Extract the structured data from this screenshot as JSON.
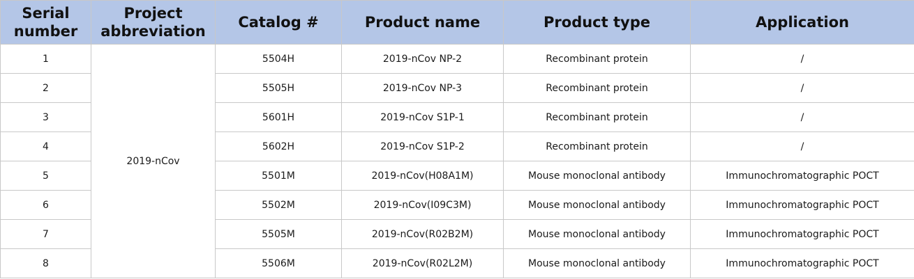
{
  "headers": {
    "serial": "Serial number",
    "project": "Project abbreviation",
    "catalog": "Catalog #",
    "product_name": "Product name",
    "product_type": "Product type",
    "application": "Application"
  },
  "project_abbreviation": "2019-nCov",
  "rows": [
    {
      "serial": "1",
      "catalog": "5504H",
      "product_name": "2019-nCov NP-2",
      "product_type": "Recombinant protein",
      "application": "/"
    },
    {
      "serial": "2",
      "catalog": "5505H",
      "product_name": "2019-nCov NP-3",
      "product_type": "Recombinant protein",
      "application": "/"
    },
    {
      "serial": "3",
      "catalog": "5601H",
      "product_name": "2019-nCov S1P-1",
      "product_type": "Recombinant protein",
      "application": "/"
    },
    {
      "serial": "4",
      "catalog": "5602H",
      "product_name": "2019-nCov S1P-2",
      "product_type": "Recombinant protein",
      "application": "/"
    },
    {
      "serial": "5",
      "catalog": "5501M",
      "product_name": "2019-nCov(H08A1M)",
      "product_type": "Mouse monoclonal antibody",
      "application": "Immunochromatographic POCT"
    },
    {
      "serial": "6",
      "catalog": "5502M",
      "product_name": "2019-nCov(I09C3M)",
      "product_type": "Mouse monoclonal antibody",
      "application": "Immunochromatographic POCT"
    },
    {
      "serial": "7",
      "catalog": "5505M",
      "product_name": "2019-nCov(R02B2M)",
      "product_type": "Mouse monoclonal antibody",
      "application": "Immunochromatographic POCT"
    },
    {
      "serial": "8",
      "catalog": "5506M",
      "product_name": "2019-nCov(R02L2M)",
      "product_type": "Mouse monoclonal antibody",
      "application": "Immunochromatographic POCT"
    }
  ]
}
